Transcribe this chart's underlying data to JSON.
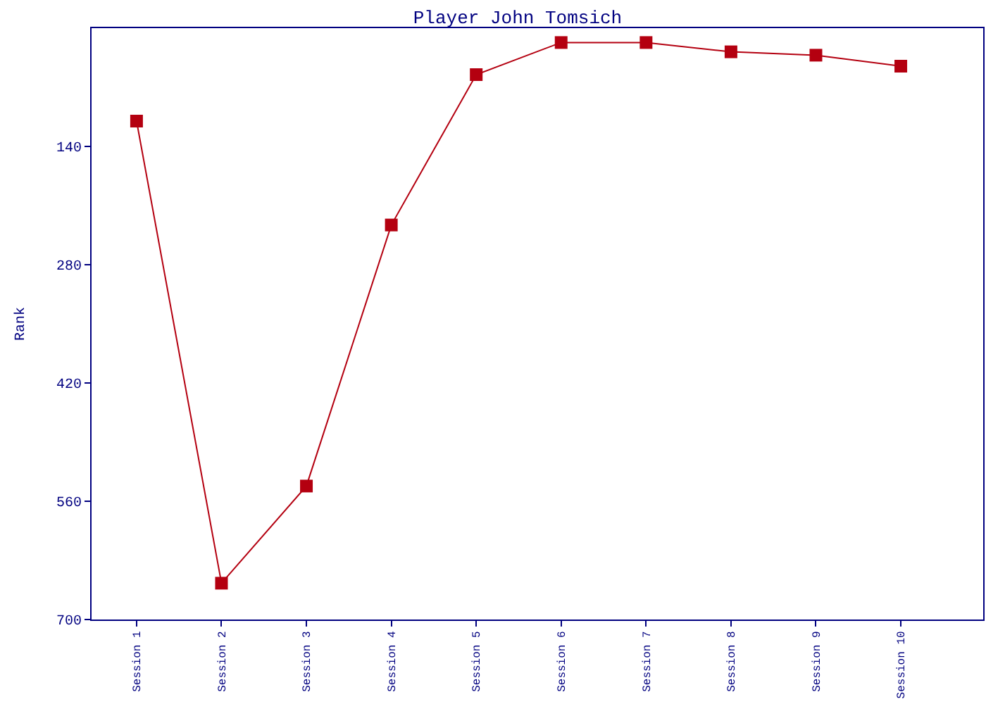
{
  "chart_data": {
    "type": "line",
    "title": "Player John Tomsich",
    "ylabel": "Rank",
    "categories": [
      "Session 1",
      "Session 2",
      "Session 3",
      "Session 4",
      "Session 5",
      "Session 6",
      "Session 7",
      "Session 8",
      "Session 9",
      "Session 10"
    ],
    "series": [
      {
        "color": "#b40010",
        "values": [
          110,
          657,
          542,
          233,
          55,
          17,
          17,
          28,
          32,
          45
        ]
      }
    ],
    "ylim": [
      700,
      0
    ],
    "yticks": [
      140,
      280,
      420,
      560,
      700
    ],
    "grid": false,
    "marker": "square",
    "line_style": "solid"
  }
}
